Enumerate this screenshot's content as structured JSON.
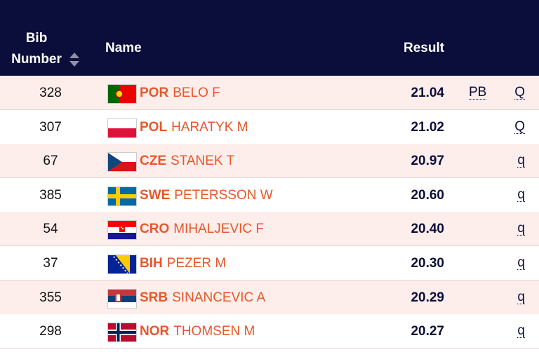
{
  "table": {
    "header": {
      "bib": "Bib Number",
      "name": "Name",
      "result": "Result"
    },
    "rows": [
      {
        "bib": "328",
        "country": "POR",
        "name": "BELO F",
        "result": "21.04",
        "pb": "PB",
        "qual": "Q"
      },
      {
        "bib": "307",
        "country": "POL",
        "name": "HARATYK M",
        "result": "21.02",
        "qual": "Q"
      },
      {
        "bib": "67",
        "country": "CZE",
        "name": "STANEK T",
        "result": "20.97",
        "qual": "q"
      },
      {
        "bib": "385",
        "country": "SWE",
        "name": "PETERSSON W",
        "result": "20.60",
        "qual": "q"
      },
      {
        "bib": "54",
        "country": "CRO",
        "name": "MIHALJEVIC F",
        "result": "20.40",
        "qual": "q"
      },
      {
        "bib": "37",
        "country": "BIH",
        "name": "PEZER M",
        "result": "20.30",
        "qual": "q"
      },
      {
        "bib": "355",
        "country": "SRB",
        "name": "SINANCEVIC A",
        "result": "20.29",
        "qual": "q"
      },
      {
        "bib": "298",
        "country": "NOR",
        "name": "THOMSEN M",
        "result": "20.27",
        "qual": "q"
      }
    ]
  }
}
